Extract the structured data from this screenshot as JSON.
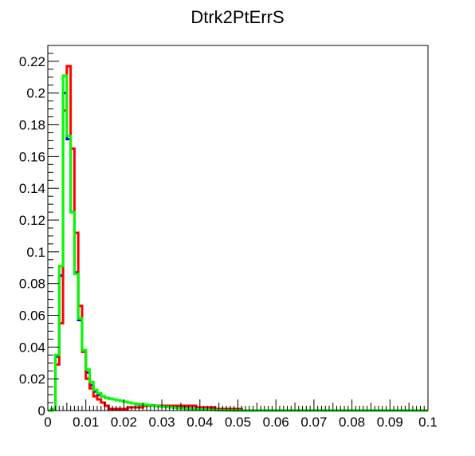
{
  "chart_data": {
    "type": "line",
    "title": "Dtrk2PtErrS",
    "xlabel": "",
    "ylabel": "",
    "xlim": [
      0,
      0.1
    ],
    "ylim": [
      0,
      0.23
    ],
    "grid": false,
    "x_ticks": [
      "0",
      "0.01",
      "0.02",
      "0.03",
      "0.04",
      "0.05",
      "0.06",
      "0.07",
      "0.08",
      "0.09",
      "0.1"
    ],
    "y_ticks": [
      "0",
      "0.02",
      "0.04",
      "0.06",
      "0.08",
      "0.1",
      "0.12",
      "0.14",
      "0.16",
      "0.18",
      "0.2",
      "0.22"
    ],
    "bin_edges": [
      0,
      0.001,
      0.002,
      0.003,
      0.004,
      0.005,
      0.006,
      0.007,
      0.008,
      0.009,
      0.01,
      0.011,
      0.012,
      0.013,
      0.014,
      0.015,
      0.016,
      0.017,
      0.018,
      0.019,
      0.02,
      0.021,
      0.022,
      0.023,
      0.024,
      0.025,
      0.026,
      0.027,
      0.028,
      0.029,
      0.03,
      0.031,
      0.032,
      0.033,
      0.034,
      0.035,
      0.036,
      0.037,
      0.038,
      0.039,
      0.04,
      0.041,
      0.042,
      0.043,
      0.044,
      0.045,
      0.046,
      0.047,
      0.048,
      0.049,
      0.05,
      0.051,
      0.052,
      0.053,
      0.054,
      0.055,
      0.056,
      0.057,
      0.058,
      0.059,
      0.06,
      0.061,
      0.062,
      0.063,
      0.064,
      0.065,
      0.066,
      0.067,
      0.068,
      0.069,
      0.07,
      0.071,
      0.072,
      0.073,
      0.074,
      0.075,
      0.076,
      0.077,
      0.078,
      0.079,
      0.08,
      0.081,
      0.082,
      0.083,
      0.084,
      0.085,
      0.086,
      0.087,
      0.088,
      0.089,
      0.09,
      0.091,
      0.092,
      0.093,
      0.094,
      0.095,
      0.096,
      0.097,
      0.098,
      0.099,
      0.1
    ],
    "series": [
      {
        "color": "#0000ff",
        "values": [
          0,
          0.001,
          0.034,
          0.085,
          0.2,
          0.171,
          0.125,
          0.087,
          0.057,
          0.038,
          0.024,
          0.016,
          0.012,
          0.01,
          0.009,
          0.008,
          0.0075,
          0.007,
          0.0065,
          0.006,
          0.0055,
          0.005,
          0.0045,
          0.004,
          0.0038,
          0.0036,
          0.0034,
          0.0032,
          0.003,
          0.0028,
          0.0026,
          0.0024,
          0.0022,
          0.002,
          0.0018,
          0.0016,
          0.0014,
          0.0012,
          0.001,
          0.0009,
          0.0008,
          0.0007,
          0.0006,
          0.0005,
          0.0004,
          0.0003,
          0.0002,
          0.0002,
          0.0001,
          0.0001,
          0.0001,
          0,
          0,
          0,
          0,
          0,
          0,
          0,
          0,
          0,
          0,
          0,
          0,
          0,
          0,
          0,
          0,
          0,
          0,
          0,
          0,
          0,
          0,
          0,
          0,
          0,
          0,
          0,
          0,
          0,
          0,
          0,
          0,
          0,
          0,
          0,
          0,
          0,
          0,
          0,
          0,
          0,
          0,
          0,
          0,
          0,
          0,
          0,
          0,
          0
        ]
      },
      {
        "color": "#ff0000",
        "values": [
          0,
          0.001,
          0.029,
          0.055,
          0.189,
          0.217,
          0.165,
          0.112,
          0.066,
          0.037,
          0.02,
          0.014,
          0.009,
          0.007,
          0.005,
          0.003,
          0.001,
          0.001,
          0.001,
          0.001,
          0.001,
          0.002,
          0.002,
          0.002,
          0.002,
          0.003,
          0.003,
          0.003,
          0.003,
          0.003,
          0.003,
          0.003,
          0.003,
          0.003,
          0.003,
          0.003,
          0.003,
          0.003,
          0.003,
          0.002,
          0.002,
          0.002,
          0.002,
          0.002,
          0.001,
          0.001,
          0.001,
          0.001,
          0.001,
          0.001,
          0.001,
          0,
          0,
          0,
          0,
          0,
          0,
          0,
          0,
          0,
          0,
          0,
          0,
          0,
          0,
          0,
          0,
          0,
          0,
          0,
          0,
          0,
          0,
          0,
          0,
          0,
          0,
          0,
          0,
          0,
          0,
          0,
          0,
          0,
          0,
          0,
          0,
          0,
          0,
          0,
          0,
          0,
          0,
          0,
          0,
          0,
          0,
          0,
          0,
          0
        ]
      },
      {
        "color": "#00ff00",
        "values": [
          0,
          0.001,
          0.035,
          0.091,
          0.211,
          0.173,
          0.125,
          0.086,
          0.058,
          0.038,
          0.026,
          0.018,
          0.013,
          0.011,
          0.009,
          0.008,
          0.0075,
          0.007,
          0.0065,
          0.006,
          0.0055,
          0.005,
          0.0045,
          0.0042,
          0.004,
          0.0038,
          0.0035,
          0.003,
          0.0028,
          0.0026,
          0.0024,
          0.0022,
          0.002,
          0.0018,
          0.0016,
          0.0014,
          0.0012,
          0.001,
          0.0009,
          0.0008,
          0.0007,
          0.0006,
          0.0005,
          0.0004,
          0.0003,
          0.0002,
          0.0002,
          0.0001,
          0.0001,
          0.0001,
          0.0001,
          0,
          0,
          0,
          0,
          0,
          0,
          0,
          0,
          0,
          0,
          0,
          0,
          0,
          0,
          0,
          0,
          0,
          0,
          0,
          0,
          0,
          0,
          0,
          0,
          0,
          0,
          0,
          0,
          0,
          0,
          0,
          0,
          0,
          0,
          0,
          0,
          0,
          0,
          0,
          0,
          0,
          0,
          0,
          0,
          0,
          0,
          0,
          0,
          0
        ]
      }
    ]
  }
}
